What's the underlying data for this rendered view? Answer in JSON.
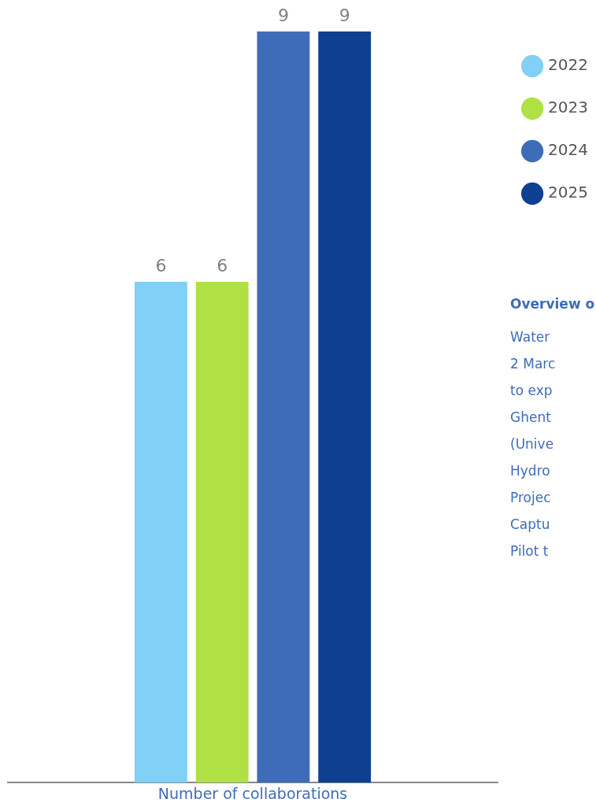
{
  "chart_data": {
    "type": "bar",
    "xlabel": "Number of collaborations",
    "categories": [
      null
    ],
    "series": [
      {
        "name": "2022",
        "color": "#81d0f5",
        "values": [
          6
        ]
      },
      {
        "name": "2023",
        "color": "#afe044",
        "values": [
          6
        ]
      },
      {
        "name": "2024",
        "color": "#3f6cb8",
        "values": [
          9
        ]
      },
      {
        "name": "2025",
        "color": "#0f3f91",
        "values": [
          9
        ]
      }
    ],
    "data_labels": true,
    "legend": "top right",
    "grid": false,
    "tick_labels": false,
    "annotations": [
      "Overview o",
      "Water",
      "2 Marc",
      "to exp",
      "Ghent",
      "(Unive",
      "Hydro",
      "Projec",
      "Captu",
      "Pilot t"
    ]
  }
}
